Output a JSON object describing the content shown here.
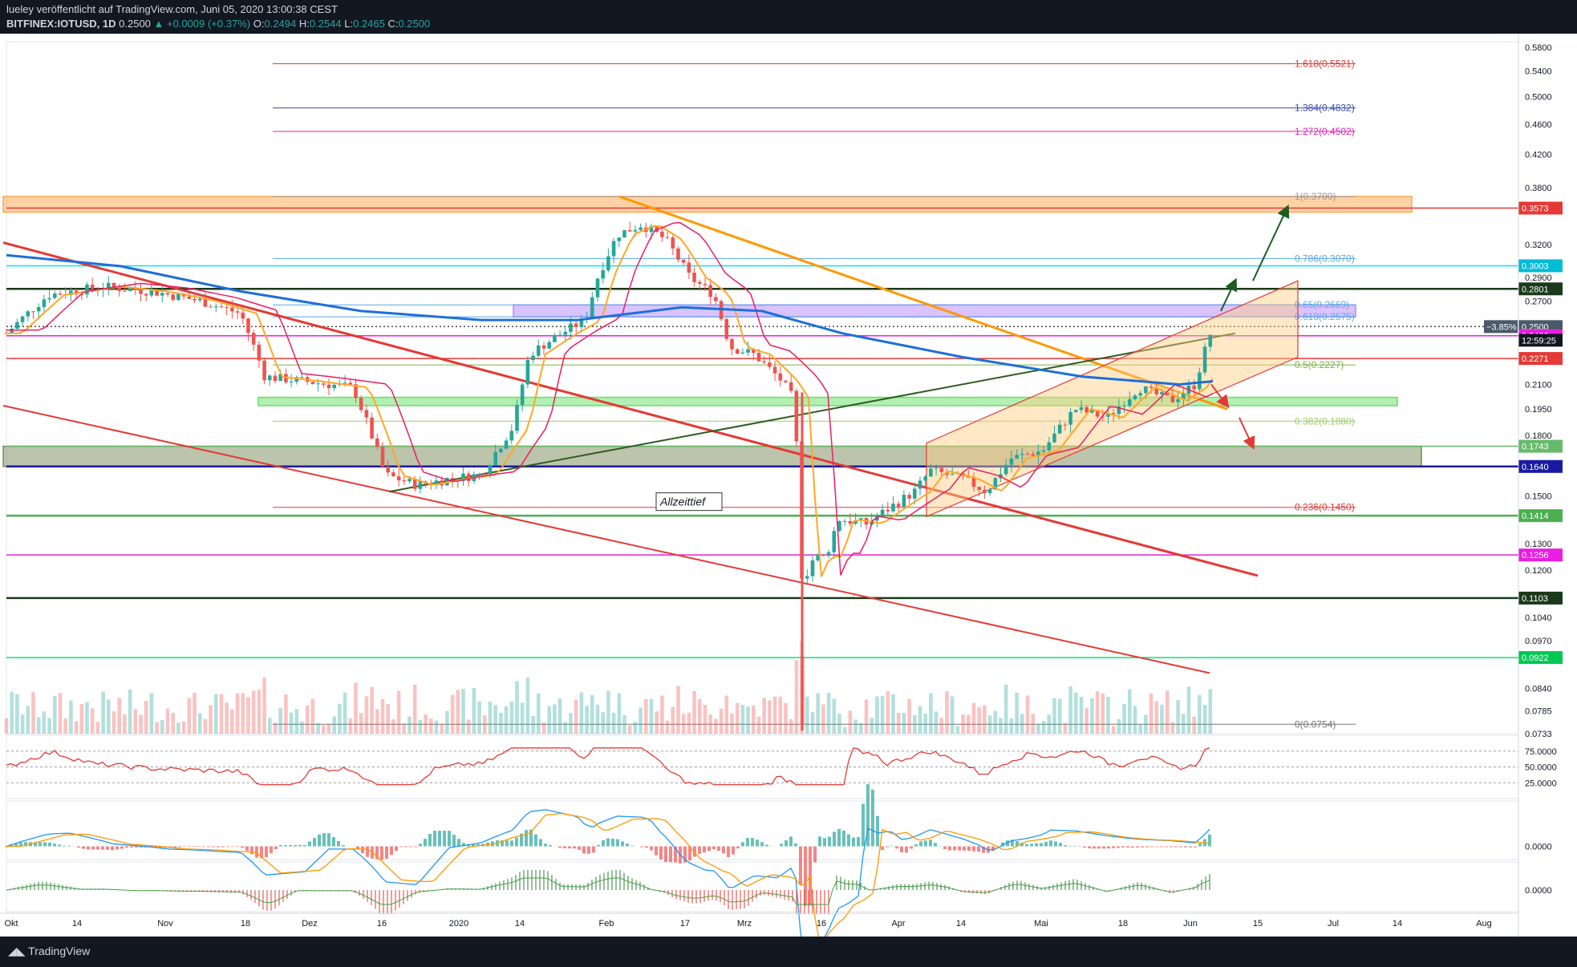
{
  "header": {
    "publisher_line": "lueley veröffentlicht auf TradingView.com, Juni 05, 2020 13:00:38 CEST",
    "symbol": "BITFINEX:IOTUSD, 1D",
    "last": "0.2500",
    "change": "▲ +0.0009 (+0.37%)",
    "o_label": "O:",
    "o": "0.2494",
    "h_label": "H:",
    "h": "0.2544",
    "l_label": "L:",
    "l": "0.2465",
    "c_label": "C:",
    "c": "0.2500"
  },
  "footer": {
    "brand": "TradingView",
    "logo_icon": "tradingview-logo-icon"
  },
  "annotation": "Allzeittief",
  "chart_data": {
    "type": "candlestick",
    "ylim": [
      0.0733,
      0.59
    ],
    "y_scale": "log",
    "price_ticks": [
      "0.5800",
      "0.5400",
      "0.5000",
      "0.4600",
      "0.4200",
      "0.3800",
      "0.3200",
      "0.2900",
      "0.2700",
      "0.2100",
      "0.1950",
      "0.1800",
      "0.1500",
      "0.1300",
      "0.1200",
      "0.1040",
      "0.0970",
      "0.0840",
      "0.0785",
      "0.0733"
    ],
    "x_ticks": [
      "Okt",
      "14",
      "Nov",
      "18",
      "Dez",
      "16",
      "2020",
      "14",
      "Feb",
      "17",
      "Mrz",
      "16",
      "Apr",
      "14",
      "Mai",
      "18",
      "Jun",
      "15",
      "Jul",
      "14",
      "Aug"
    ],
    "fib_levels": [
      {
        "label": "1.618(0.5521)",
        "value": 0.5521,
        "color": "#e53935"
      },
      {
        "label": "1.384(0.4832)",
        "value": 0.4832,
        "color": "#3949ab"
      },
      {
        "label": "1.272(0.4502)",
        "value": 0.4502,
        "color": "#e91eb5"
      },
      {
        "label": "1(0.3700)",
        "value": 0.37,
        "color": "#999999"
      },
      {
        "label": "0.786(0.3070)",
        "value": 0.307,
        "color": "#5aa9e6"
      },
      {
        "label": "0.65(0.2669)",
        "value": 0.2669,
        "color": "#5aa9e6"
      },
      {
        "label": "0.618(0.2575)",
        "value": 0.2575,
        "color": "#5aa9e6"
      },
      {
        "label": "0.5(0.2227)",
        "value": 0.2227,
        "color": "#7cb342"
      },
      {
        "label": "0.382(0.1880)",
        "value": 0.188,
        "color": "#9ccc65"
      },
      {
        "label": "0.236(0.1450)",
        "value": 0.145,
        "color": "#e53935"
      },
      {
        "label": "0(0.0754)",
        "value": 0.0754,
        "color": "#777777"
      }
    ],
    "horizontal_levels": [
      {
        "label": "0.3573",
        "value": 0.3573,
        "color": "#e53935",
        "bg": "#e53935"
      },
      {
        "label": "0.3003",
        "value": 0.3003,
        "color": "#00e5ff",
        "bg": "#00bcd4"
      },
      {
        "label": "0.2801",
        "value": 0.2801,
        "color": "#1b3a1b",
        "bg": "#1b3a1b"
      },
      {
        "label": "0.2500",
        "value": 0.25,
        "color": "#444444",
        "bg": "#4a5a6a"
      },
      {
        "label": "0.2432",
        "value": 0.2432,
        "color": "#e91ee0",
        "bg": "#e91ee0"
      },
      {
        "label": "0.2271",
        "value": 0.2271,
        "color": "#e53935",
        "bg": "#e53935"
      },
      {
        "label": "0.1743",
        "value": 0.1743,
        "color": "#66bb6a",
        "bg": "#66bb6a"
      },
      {
        "label": "0.1640",
        "value": 0.164,
        "color": "#1a1aa0",
        "bg": "#1a1aa0"
      },
      {
        "label": "0.1414",
        "value": 0.1414,
        "color": "#4caf50",
        "bg": "#4caf50"
      },
      {
        "label": "0.1256",
        "value": 0.1256,
        "color": "#e91ee0",
        "bg": "#e91ee0"
      },
      {
        "label": "0.1103",
        "value": 0.1103,
        "color": "#1b3a1b",
        "bg": "#1b3a1b"
      },
      {
        "label": "0.0922",
        "value": 0.0922,
        "color": "#00e676",
        "bg": "#00c853"
      }
    ],
    "countdown": "12:59:25",
    "change_pct": "−3.85%",
    "zones": [
      {
        "name": "resistance-zone",
        "y1": 0.37,
        "y2": 0.353,
        "color": "#ffa54d"
      },
      {
        "name": "fib-zone",
        "y1": 0.2669,
        "y2": 0.2575,
        "color": "#b388ff"
      },
      {
        "name": "support-zone-green",
        "y1": 0.202,
        "y2": 0.197,
        "color": "#66e066"
      },
      {
        "name": "support-zone-olive",
        "y1": 0.1743,
        "y2": 0.164,
        "color": "#7a8a5a"
      }
    ],
    "rsi": {
      "levels": [
        "75.0000",
        "50.0000",
        "25.0000"
      ]
    },
    "macd": {
      "levels": [
        "0.0000"
      ]
    },
    "osc": {
      "levels": [
        "0.0000"
      ]
    }
  }
}
